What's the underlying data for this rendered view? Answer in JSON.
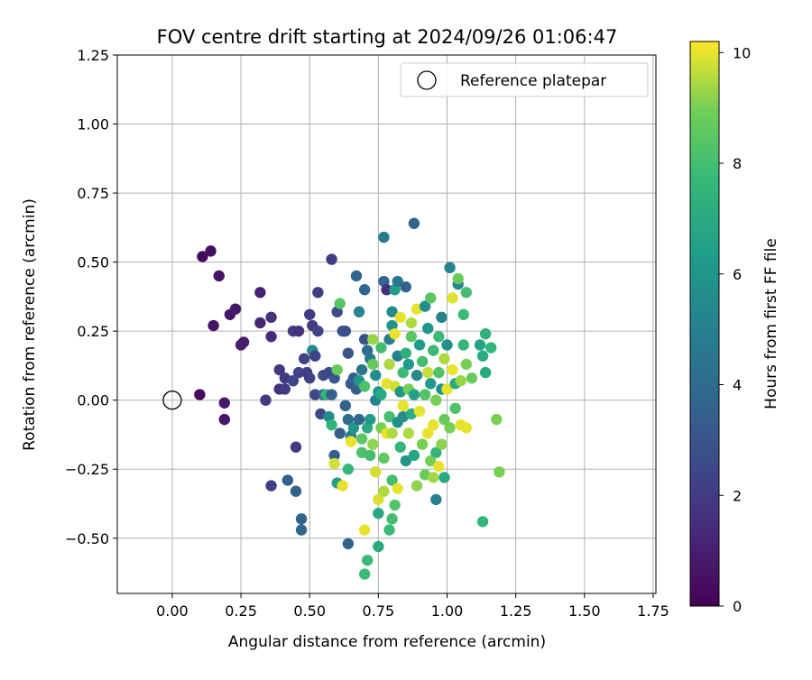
{
  "chart_data": {
    "type": "scatter",
    "title": "FOV centre drift starting at 2024/09/26 01:06:47",
    "xlabel": "Angular distance from reference (arcmin)",
    "ylabel": "Rotation from reference (arcmin)",
    "xlim": [
      -0.2,
      1.76
    ],
    "ylim": [
      -0.7,
      1.25
    ],
    "xticks": [
      0.0,
      0.25,
      0.5,
      0.75,
      1.0,
      1.25,
      1.5,
      1.75
    ],
    "xtick_labels": [
      "0.00",
      "0.25",
      "0.50",
      "0.75",
      "1.00",
      "1.25",
      "1.50",
      "1.75"
    ],
    "yticks": [
      -0.5,
      -0.25,
      0.0,
      0.25,
      0.5,
      0.75,
      1.0,
      1.25
    ],
    "ytick_labels": [
      "−0.50",
      "−0.25",
      "0.00",
      "0.25",
      "0.50",
      "0.75",
      "1.00",
      "1.25"
    ],
    "grid": true,
    "colormap": "viridis",
    "colorbar": {
      "label": "Hours from first FF file",
      "min": 0,
      "max": 10.2,
      "ticks": [
        0,
        2,
        4,
        6,
        8,
        10
      ],
      "tick_labels": [
        "0",
        "2",
        "4",
        "6",
        "8",
        "10"
      ]
    },
    "legend": {
      "position": "top-right",
      "entries": [
        "Reference platepar"
      ]
    },
    "reference_point": {
      "x": 0.0,
      "y": 0.0
    },
    "points": [
      {
        "x": 0.1,
        "y": 0.02,
        "h": 0.3
      },
      {
        "x": 0.11,
        "y": 0.52,
        "h": 0.3
      },
      {
        "x": 0.14,
        "y": 0.54,
        "h": 0.5
      },
      {
        "x": 0.15,
        "y": 0.27,
        "h": 0.6
      },
      {
        "x": 0.17,
        "y": 0.45,
        "h": 0.6
      },
      {
        "x": 0.19,
        "y": -0.01,
        "h": 0.7
      },
      {
        "x": 0.19,
        "y": -0.07,
        "h": 0.7
      },
      {
        "x": 0.21,
        "y": 0.31,
        "h": 0.8
      },
      {
        "x": 0.23,
        "y": 0.33,
        "h": 0.8
      },
      {
        "x": 0.25,
        "y": 0.2,
        "h": 0.9
      },
      {
        "x": 0.26,
        "y": 0.21,
        "h": 0.9
      },
      {
        "x": 0.32,
        "y": 0.39,
        "h": 1.1
      },
      {
        "x": 0.32,
        "y": 0.28,
        "h": 1.2
      },
      {
        "x": 0.34,
        "y": 0.0,
        "h": 1.9
      },
      {
        "x": 0.36,
        "y": 0.3,
        "h": 1.6
      },
      {
        "x": 0.36,
        "y": 0.23,
        "h": 1.4
      },
      {
        "x": 0.36,
        "y": -0.31,
        "h": 2.1
      },
      {
        "x": 0.39,
        "y": 0.04,
        "h": 1.6
      },
      {
        "x": 0.39,
        "y": 0.11,
        "h": 1.8
      },
      {
        "x": 0.41,
        "y": 0.04,
        "h": 2.0
      },
      {
        "x": 0.41,
        "y": 0.08,
        "h": 2.0
      },
      {
        "x": 0.42,
        "y": -0.29,
        "h": 3.6
      },
      {
        "x": 0.44,
        "y": 0.25,
        "h": 2.0
      },
      {
        "x": 0.44,
        "y": 0.07,
        "h": 2.3
      },
      {
        "x": 0.45,
        "y": -0.17,
        "h": 2.0
      },
      {
        "x": 0.45,
        "y": -0.33,
        "h": 3.6
      },
      {
        "x": 0.46,
        "y": 0.25,
        "h": 1.6
      },
      {
        "x": 0.46,
        "y": 0.1,
        "h": 2.3
      },
      {
        "x": 0.47,
        "y": -0.43,
        "h": 3.6
      },
      {
        "x": 0.47,
        "y": -0.47,
        "h": 3.8
      },
      {
        "x": 0.48,
        "y": 0.15,
        "h": 2.3
      },
      {
        "x": 0.49,
        "y": 0.1,
        "h": 2.1
      },
      {
        "x": 0.5,
        "y": 0.08,
        "h": 2.2
      },
      {
        "x": 0.5,
        "y": 0.31,
        "h": 2.0
      },
      {
        "x": 0.51,
        "y": 0.27,
        "h": 2.0
      },
      {
        "x": 0.51,
        "y": 0.18,
        "h": 5.5
      },
      {
        "x": 0.52,
        "y": 0.16,
        "h": 2.3
      },
      {
        "x": 0.52,
        "y": 0.02,
        "h": 2.4
      },
      {
        "x": 0.53,
        "y": 0.39,
        "h": 2.1
      },
      {
        "x": 0.53,
        "y": 0.25,
        "h": 2.3
      },
      {
        "x": 0.54,
        "y": -0.05,
        "h": 2.5
      },
      {
        "x": 0.55,
        "y": 0.09,
        "h": 2.5
      },
      {
        "x": 0.55,
        "y": 0.02,
        "h": 3.4
      },
      {
        "x": 0.56,
        "y": 0.02,
        "h": 7.5
      },
      {
        "x": 0.57,
        "y": 0.1,
        "h": 2.6
      },
      {
        "x": 0.57,
        "y": -0.06,
        "h": 5.6
      },
      {
        "x": 0.58,
        "y": 0.51,
        "h": 2.0
      },
      {
        "x": 0.58,
        "y": -0.09,
        "h": 7.5
      },
      {
        "x": 0.58,
        "y": 0.02,
        "h": 3.5
      },
      {
        "x": 0.59,
        "y": -0.2,
        "h": 3.4
      },
      {
        "x": 0.59,
        "y": 0.08,
        "h": 3.0
      },
      {
        "x": 0.59,
        "y": -0.23,
        "h": 9.8
      },
      {
        "x": 0.6,
        "y": 0.32,
        "h": 2.6
      },
      {
        "x": 0.6,
        "y": 0.11,
        "h": 8.8
      },
      {
        "x": 0.6,
        "y": -0.3,
        "h": 6.5
      },
      {
        "x": 0.61,
        "y": 0.35,
        "h": 8.4
      },
      {
        "x": 0.61,
        "y": -0.12,
        "h": 3.4
      },
      {
        "x": 0.62,
        "y": 0.25,
        "h": 3.0
      },
      {
        "x": 0.62,
        "y": -0.31,
        "h": 10.0
      },
      {
        "x": 0.63,
        "y": 0.25,
        "h": 2.8
      },
      {
        "x": 0.63,
        "y": -0.02,
        "h": 3.6
      },
      {
        "x": 0.64,
        "y": -0.25,
        "h": 7.6
      },
      {
        "x": 0.64,
        "y": -0.52,
        "h": 3.6
      },
      {
        "x": 0.64,
        "y": 0.17,
        "h": 3.0
      },
      {
        "x": 0.64,
        "y": -0.07,
        "h": 4.0
      },
      {
        "x": 0.65,
        "y": -0.13,
        "h": 5.0
      },
      {
        "x": 0.65,
        "y": 0.06,
        "h": 3.2
      },
      {
        "x": 0.65,
        "y": -0.15,
        "h": 10.0
      },
      {
        "x": 0.66,
        "y": -0.1,
        "h": 6.0
      },
      {
        "x": 0.66,
        "y": 0.08,
        "h": 3.4
      },
      {
        "x": 0.67,
        "y": 0.45,
        "h": 3.8
      },
      {
        "x": 0.67,
        "y": 0.04,
        "h": 3.4
      },
      {
        "x": 0.68,
        "y": 0.32,
        "h": 5.2
      },
      {
        "x": 0.68,
        "y": -0.07,
        "h": 3.8
      },
      {
        "x": 0.68,
        "y": 0.07,
        "h": 6.0
      },
      {
        "x": 0.69,
        "y": -0.19,
        "h": 8.2
      },
      {
        "x": 0.69,
        "y": 0.11,
        "h": 4.5
      },
      {
        "x": 0.69,
        "y": -0.14,
        "h": 8.5
      },
      {
        "x": 0.7,
        "y": 0.4,
        "h": 3.8
      },
      {
        "x": 0.7,
        "y": 0.22,
        "h": 3.0
      },
      {
        "x": 0.7,
        "y": 0.05,
        "h": 8.2
      },
      {
        "x": 0.7,
        "y": -0.47,
        "h": 10.0
      },
      {
        "x": 0.7,
        "y": -0.63,
        "h": 7.8
      },
      {
        "x": 0.71,
        "y": -0.58,
        "h": 7.8
      },
      {
        "x": 0.71,
        "y": -0.1,
        "h": 7.0
      },
      {
        "x": 0.71,
        "y": 0.18,
        "h": 4.0
      },
      {
        "x": 0.72,
        "y": 0.15,
        "h": 4.6
      },
      {
        "x": 0.72,
        "y": -0.2,
        "h": 8.0
      },
      {
        "x": 0.72,
        "y": -0.07,
        "h": 6.2
      },
      {
        "x": 0.73,
        "y": 0.13,
        "h": 8.7
      },
      {
        "x": 0.73,
        "y": -0.16,
        "h": 9.2
      },
      {
        "x": 0.73,
        "y": 0.22,
        "h": 9.3
      },
      {
        "x": 0.74,
        "y": 0.0,
        "h": 5.0
      },
      {
        "x": 0.74,
        "y": -0.26,
        "h": 9.8
      },
      {
        "x": 0.74,
        "y": 0.09,
        "h": 5.5
      },
      {
        "x": 0.75,
        "y": -0.36,
        "h": 9.9
      },
      {
        "x": 0.75,
        "y": -0.41,
        "h": 6.8
      },
      {
        "x": 0.75,
        "y": 0.03,
        "h": 6.0
      },
      {
        "x": 0.75,
        "y": -0.53,
        "h": 7.0
      },
      {
        "x": 0.76,
        "y": 0.02,
        "h": 7.0
      },
      {
        "x": 0.76,
        "y": -0.1,
        "h": 9.0
      },
      {
        "x": 0.76,
        "y": 0.19,
        "h": 8.0
      },
      {
        "x": 0.77,
        "y": 0.59,
        "h": 4.8
      },
      {
        "x": 0.77,
        "y": 0.43,
        "h": 3.8
      },
      {
        "x": 0.77,
        "y": -0.33,
        "h": 9.5
      },
      {
        "x": 0.77,
        "y": -0.21,
        "h": 8.6
      },
      {
        "x": 0.78,
        "y": 0.06,
        "h": 10.0
      },
      {
        "x": 0.78,
        "y": 0.4,
        "h": 1.5
      },
      {
        "x": 0.78,
        "y": -0.12,
        "h": 10.0
      },
      {
        "x": 0.79,
        "y": 0.13,
        "h": 9.5
      },
      {
        "x": 0.79,
        "y": -0.47,
        "h": 7.8
      },
      {
        "x": 0.79,
        "y": -0.06,
        "h": 8.0
      },
      {
        "x": 0.79,
        "y": 0.22,
        "h": 5.0
      },
      {
        "x": 0.8,
        "y": 0.32,
        "h": 5.5
      },
      {
        "x": 0.8,
        "y": -0.29,
        "h": 8.0
      },
      {
        "x": 0.8,
        "y": 0.27,
        "h": 6.0
      },
      {
        "x": 0.8,
        "y": -0.43,
        "h": 8.0
      },
      {
        "x": 0.8,
        "y": -0.12,
        "h": 9.5
      },
      {
        "x": 0.81,
        "y": 0.4,
        "h": 6.5
      },
      {
        "x": 0.81,
        "y": 0.05,
        "h": 9.8
      },
      {
        "x": 0.81,
        "y": -0.38,
        "h": 8.3
      },
      {
        "x": 0.81,
        "y": 0.24,
        "h": 10.0
      },
      {
        "x": 0.82,
        "y": 0.43,
        "h": 4.6
      },
      {
        "x": 0.82,
        "y": 0.16,
        "h": 5.0
      },
      {
        "x": 0.82,
        "y": -0.08,
        "h": 5.8
      },
      {
        "x": 0.82,
        "y": -0.32,
        "h": 10.0
      },
      {
        "x": 0.83,
        "y": 0.3,
        "h": 10.0
      },
      {
        "x": 0.83,
        "y": 0.03,
        "h": 6.0
      },
      {
        "x": 0.83,
        "y": -0.17,
        "h": 7.5
      },
      {
        "x": 0.84,
        "y": -0.06,
        "h": 5.6
      },
      {
        "x": 0.84,
        "y": 0.1,
        "h": 7.8
      },
      {
        "x": 0.84,
        "y": -0.02,
        "h": 10.0
      },
      {
        "x": 0.85,
        "y": 0.41,
        "h": 3.6
      },
      {
        "x": 0.85,
        "y": -0.22,
        "h": 6.0
      },
      {
        "x": 0.85,
        "y": 0.17,
        "h": 7.3
      },
      {
        "x": 0.86,
        "y": 0.13,
        "h": 6.2
      },
      {
        "x": 0.86,
        "y": -0.12,
        "h": 9.5
      },
      {
        "x": 0.86,
        "y": 0.04,
        "h": 9.0
      },
      {
        "x": 0.87,
        "y": 0.23,
        "h": 8.5
      },
      {
        "x": 0.87,
        "y": -0.05,
        "h": 7.2
      },
      {
        "x": 0.87,
        "y": 0.28,
        "h": 9.5
      },
      {
        "x": 0.88,
        "y": 0.64,
        "h": 3.6
      },
      {
        "x": 0.88,
        "y": 0.02,
        "h": 6.6
      },
      {
        "x": 0.88,
        "y": -0.2,
        "h": 6.8
      },
      {
        "x": 0.89,
        "y": 0.33,
        "h": 10.0
      },
      {
        "x": 0.89,
        "y": -0.31,
        "h": 9.2
      },
      {
        "x": 0.89,
        "y": 0.09,
        "h": 5.5
      },
      {
        "x": 0.9,
        "y": -0.04,
        "h": 10.0
      },
      {
        "x": 0.9,
        "y": 0.2,
        "h": 6.3
      },
      {
        "x": 0.91,
        "y": 0.14,
        "h": 8.0
      },
      {
        "x": 0.91,
        "y": -0.16,
        "h": 9.0
      },
      {
        "x": 0.92,
        "y": 0.34,
        "h": 5.6
      },
      {
        "x": 0.92,
        "y": 0.02,
        "h": 8.3
      },
      {
        "x": 0.92,
        "y": -0.27,
        "h": 8.8
      },
      {
        "x": 0.93,
        "y": -0.12,
        "h": 10.0
      },
      {
        "x": 0.93,
        "y": 0.26,
        "h": 6.0
      },
      {
        "x": 0.93,
        "y": 0.1,
        "h": 9.7
      },
      {
        "x": 0.94,
        "y": 0.37,
        "h": 8.5
      },
      {
        "x": 0.94,
        "y": -0.22,
        "h": 9.0
      },
      {
        "x": 0.94,
        "y": 0.06,
        "h": 6.2
      },
      {
        "x": 0.95,
        "y": -0.09,
        "h": 10.0
      },
      {
        "x": 0.95,
        "y": 0.18,
        "h": 7.8
      },
      {
        "x": 0.95,
        "y": -0.28,
        "h": 9.4
      },
      {
        "x": 0.96,
        "y": -0.36,
        "h": 5.0
      },
      {
        "x": 0.96,
        "y": 0.0,
        "h": 9.0
      },
      {
        "x": 0.96,
        "y": -0.19,
        "h": 7.6
      },
      {
        "x": 0.97,
        "y": 0.23,
        "h": 7.8
      },
      {
        "x": 0.97,
        "y": 0.1,
        "h": 8.3
      },
      {
        "x": 0.97,
        "y": -0.24,
        "h": 10.0
      },
      {
        "x": 0.98,
        "y": 0.3,
        "h": 5.2
      },
      {
        "x": 0.98,
        "y": 0.04,
        "h": 5.8
      },
      {
        "x": 0.98,
        "y": -0.16,
        "h": 9.2
      },
      {
        "x": 0.99,
        "y": -0.07,
        "h": 8.8
      },
      {
        "x": 0.99,
        "y": 0.15,
        "h": 9.5
      },
      {
        "x": 0.99,
        "y": -0.28,
        "h": 7.0
      },
      {
        "x": 1.0,
        "y": 0.04,
        "h": 10.0
      },
      {
        "x": 1.0,
        "y": 0.2,
        "h": 5.8
      },
      {
        "x": 1.01,
        "y": -0.1,
        "h": 9.0
      },
      {
        "x": 1.01,
        "y": 0.48,
        "h": 5.2
      },
      {
        "x": 1.02,
        "y": 0.37,
        "h": 9.9
      },
      {
        "x": 1.02,
        "y": 0.11,
        "h": 10.0
      },
      {
        "x": 1.03,
        "y": -0.03,
        "h": 8.2
      },
      {
        "x": 1.03,
        "y": 0.06,
        "h": 7.0
      },
      {
        "x": 1.04,
        "y": 0.42,
        "h": 5.4
      },
      {
        "x": 1.04,
        "y": 0.44,
        "h": 8.8
      },
      {
        "x": 1.05,
        "y": 0.07,
        "h": 9.3
      },
      {
        "x": 1.05,
        "y": -0.09,
        "h": 10.0
      },
      {
        "x": 1.06,
        "y": 0.31,
        "h": 7.8
      },
      {
        "x": 1.06,
        "y": 0.2,
        "h": 7.6
      },
      {
        "x": 1.07,
        "y": 0.13,
        "h": 9.0
      },
      {
        "x": 1.07,
        "y": -0.1,
        "h": 10.0
      },
      {
        "x": 1.07,
        "y": 0.39,
        "h": 8.0
      },
      {
        "x": 1.09,
        "y": 0.08,
        "h": 8.8
      },
      {
        "x": 1.12,
        "y": 0.2,
        "h": 6.6
      },
      {
        "x": 1.13,
        "y": 0.16,
        "h": 7.0
      },
      {
        "x": 1.13,
        "y": -0.44,
        "h": 7.6
      },
      {
        "x": 1.14,
        "y": 0.24,
        "h": 7.3
      },
      {
        "x": 1.14,
        "y": 0.1,
        "h": 7.0
      },
      {
        "x": 1.16,
        "y": 0.19,
        "h": 7.5
      },
      {
        "x": 1.18,
        "y": -0.07,
        "h": 9.0
      },
      {
        "x": 1.19,
        "y": -0.26,
        "h": 9.0
      }
    ]
  }
}
